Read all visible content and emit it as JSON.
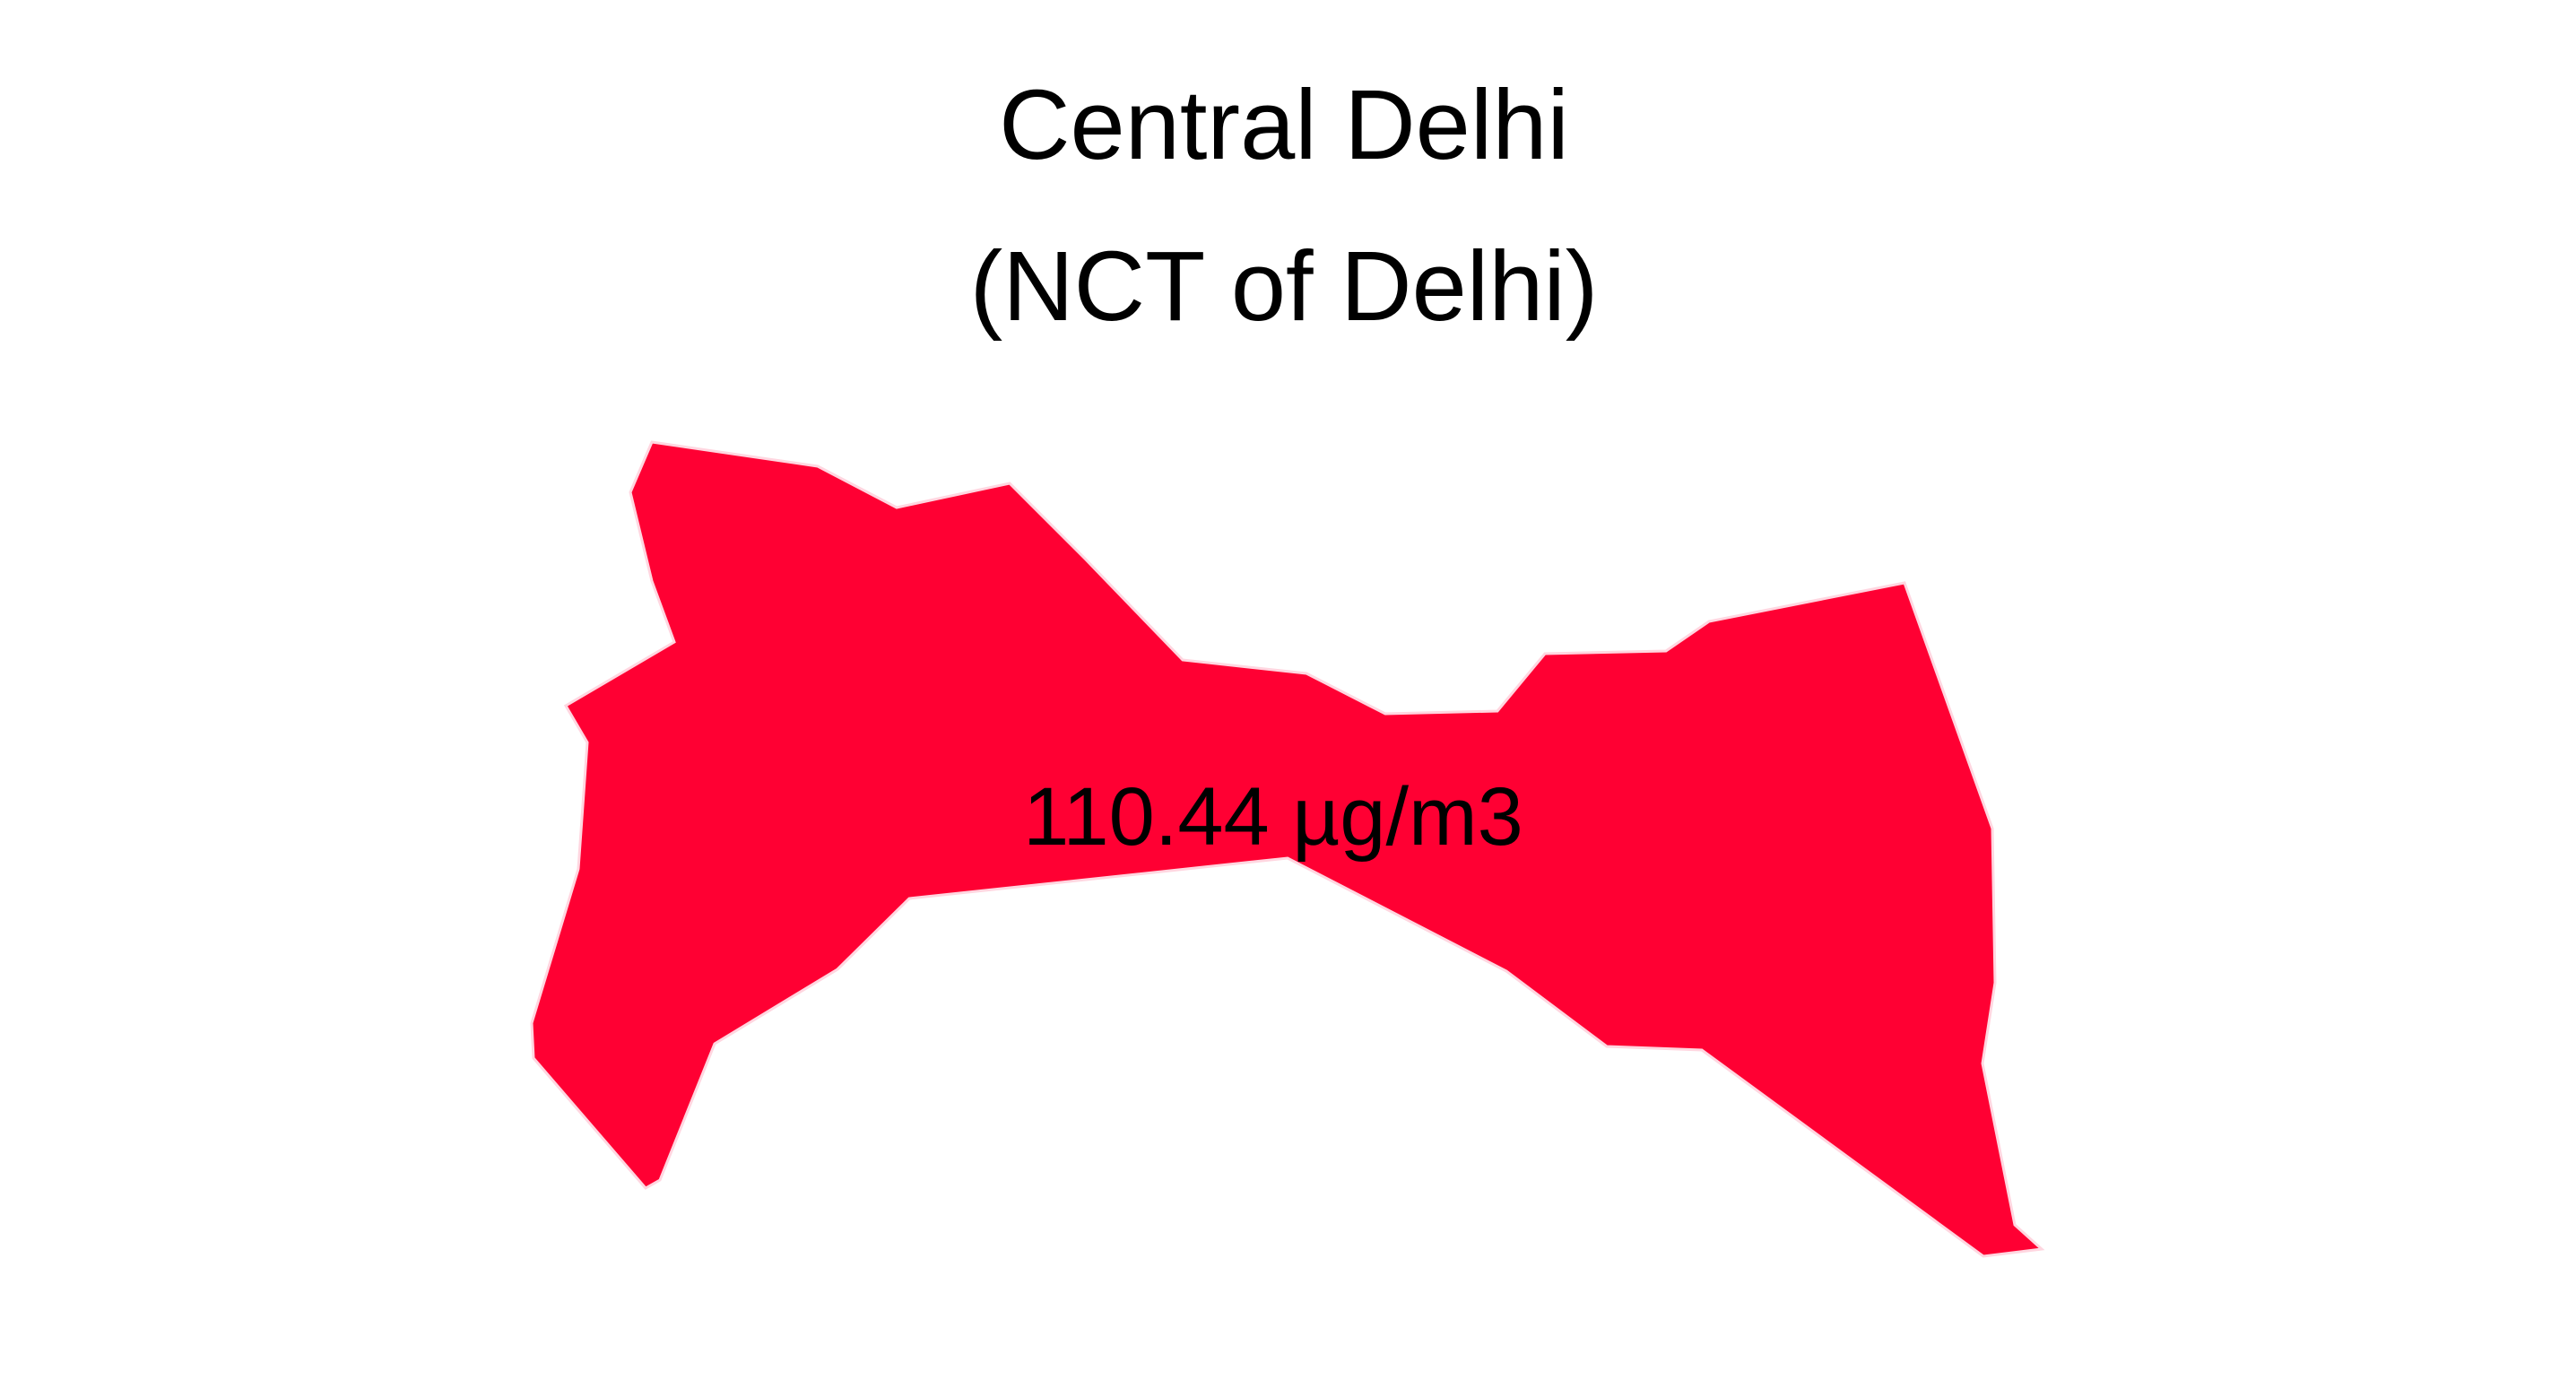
{
  "map": {
    "title_line1": "Central Delhi",
    "title_line2": "(NCT of Delhi)",
    "region": {
      "value_label": "110.44 µg/m3",
      "value": 110.44,
      "unit": "µg/m3",
      "fill_color": "#ff0033"
    }
  }
}
